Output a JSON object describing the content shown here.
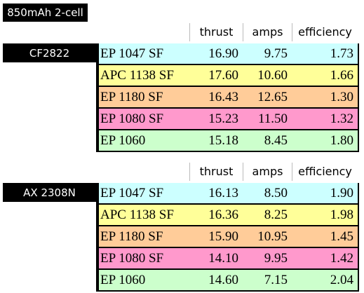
{
  "title": "850mAh 2-cell",
  "tables": [
    {
      "label": "CF2822",
      "columns": [
        "thrust",
        "amps",
        "efficiency"
      ],
      "rows": [
        [
          "EP 1047 SF",
          "16.90",
          "9.75",
          "1.73"
        ],
        [
          "APC 1138 SF",
          "17.60",
          "10.60",
          "1.66"
        ],
        [
          "EP 1180 SF",
          "16.43",
          "12.65",
          "1.30"
        ],
        [
          "EP 1080 SF",
          "15.23",
          "11.50",
          "1.32"
        ],
        [
          "EP 1060",
          "15.18",
          "8.45",
          "1.80"
        ]
      ]
    },
    {
      "label": "AX 2308N",
      "columns": [
        "thrust",
        "amps",
        "efficiency"
      ],
      "rows": [
        [
          "EP 1047 SF",
          "16.13",
          "8.50",
          "1.90"
        ],
        [
          "APC 1138 SF",
          "16.36",
          "8.25",
          "1.98"
        ],
        [
          "EP 1180 SF",
          "15.90",
          "10.95",
          "1.45"
        ],
        [
          "EP 1080 SF",
          "14.10",
          "9.95",
          "1.42"
        ],
        [
          "EP 1060",
          "14.60",
          "7.15",
          "2.04"
        ]
      ]
    }
  ]
}
